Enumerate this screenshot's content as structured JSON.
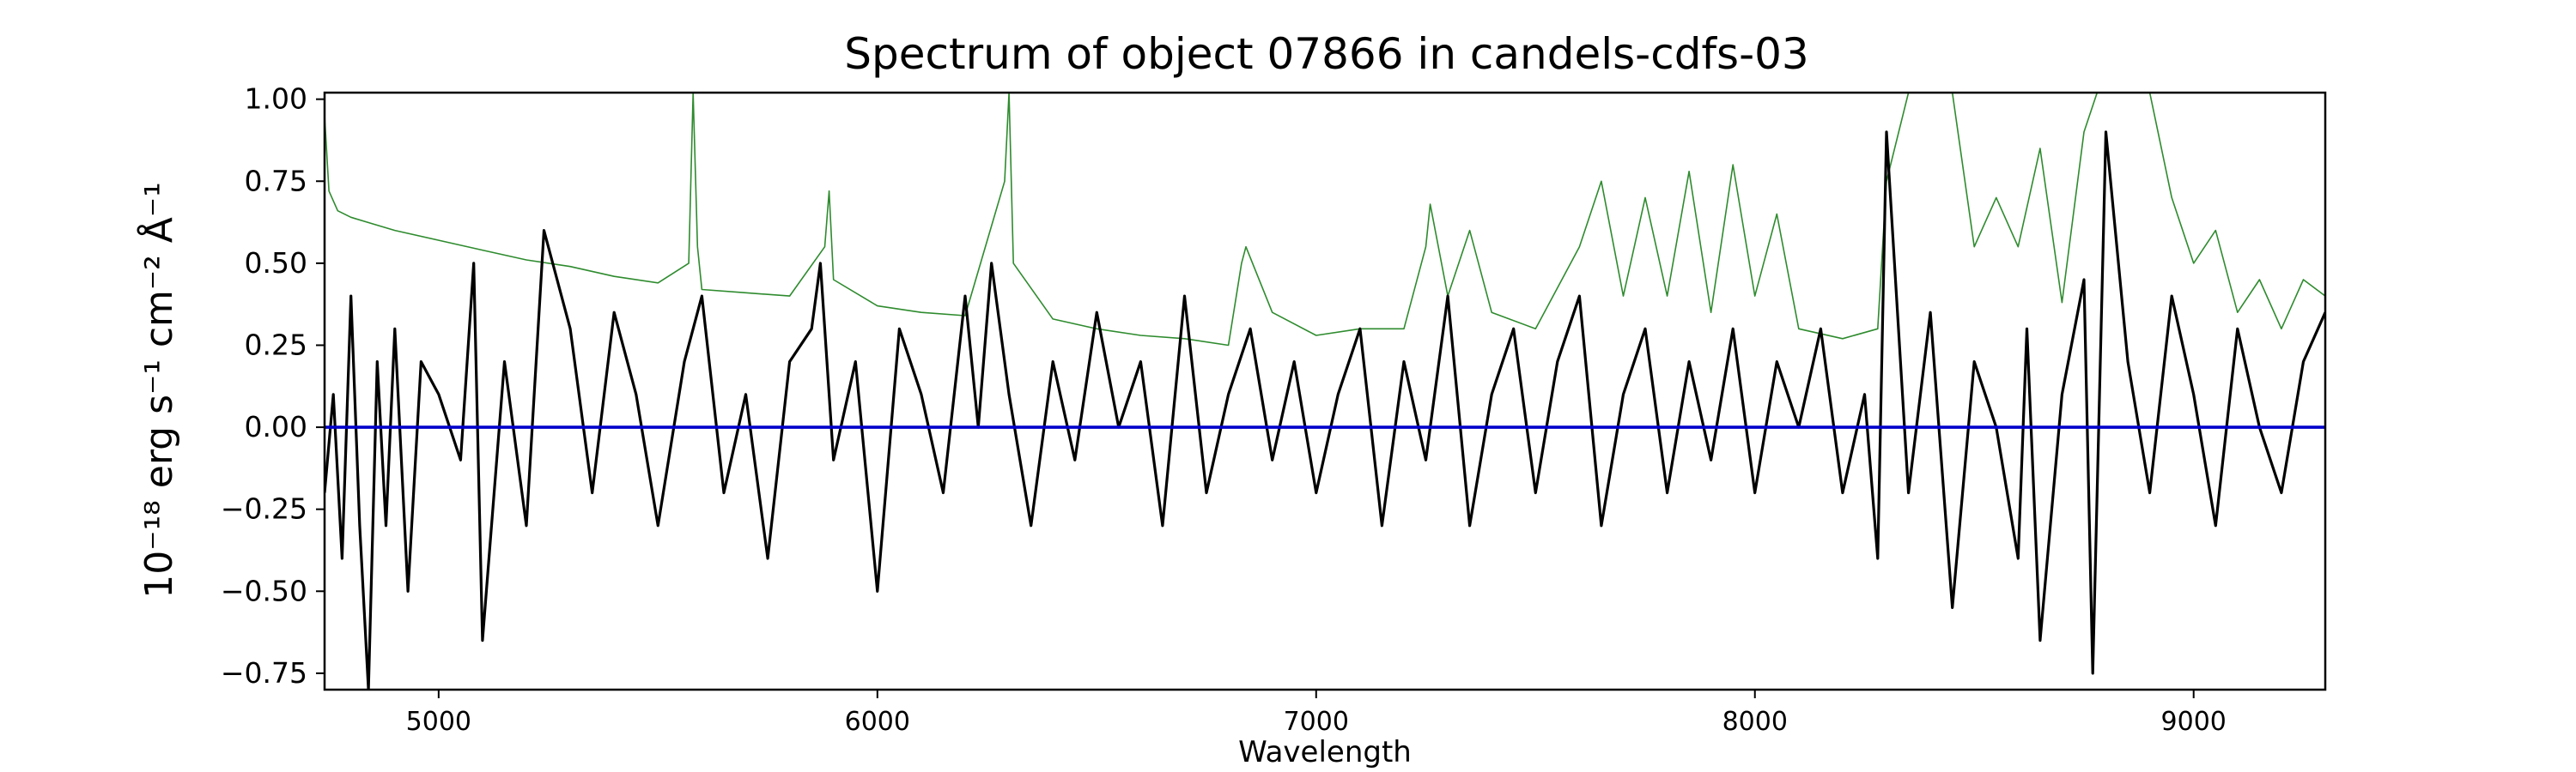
{
  "chart_data": {
    "type": "line",
    "title": "Spectrum of object 07866 in candels-cdfs-03",
    "xlabel": "Wavelength",
    "ylabel": "10⁻¹⁸ erg s⁻¹ cm⁻² Å⁻¹",
    "xlim": [
      4740,
      9300
    ],
    "ylim": [
      -0.8,
      1.02
    ],
    "xticks": [
      5000,
      6000,
      7000,
      8000,
      9000
    ],
    "yticks": [
      -0.75,
      -0.5,
      -0.25,
      0.0,
      0.25,
      0.5,
      0.75,
      1.0
    ],
    "xtick_labels": [
      "5000",
      "6000",
      "7000",
      "8000",
      "9000"
    ],
    "ytick_labels": [
      "−0.75",
      "−0.50",
      "−0.25",
      "0.00",
      "0.25",
      "0.50",
      "0.75",
      "1.00"
    ],
    "grid": false,
    "colors": {
      "flux": "#000000",
      "error": "#2e8b2e",
      "zero": "#0000cc"
    },
    "series": [
      {
        "key": "error",
        "x": [
          4740,
          4750,
          4770,
          4800,
          4850,
          4900,
          5000,
          5100,
          5200,
          5300,
          5400,
          5500,
          5570,
          5580,
          5590,
          5600,
          5700,
          5800,
          5880,
          5890,
          5900,
          6000,
          6100,
          6200,
          6290,
          6300,
          6310,
          6400,
          6500,
          6600,
          6700,
          6800,
          6830,
          6840,
          6900,
          7000,
          7100,
          7200,
          7250,
          7260,
          7300,
          7350,
          7400,
          7500,
          7600,
          7650,
          7700,
          7750,
          7800,
          7850,
          7900,
          7950,
          8000,
          8050,
          8100,
          8200,
          8280,
          8300,
          8350,
          8400,
          8450,
          8500,
          8550,
          8600,
          8650,
          8700,
          8750,
          8780,
          8800,
          8850,
          8900,
          8950,
          9000,
          9050,
          9100,
          9150,
          9200,
          9250,
          9300
        ],
        "y": [
          0.95,
          0.72,
          0.66,
          0.64,
          0.62,
          0.6,
          0.57,
          0.54,
          0.51,
          0.49,
          0.46,
          0.44,
          0.5,
          1.02,
          0.55,
          0.42,
          0.41,
          0.4,
          0.55,
          0.72,
          0.45,
          0.37,
          0.35,
          0.34,
          0.75,
          1.02,
          0.5,
          0.33,
          0.3,
          0.28,
          0.27,
          0.25,
          0.5,
          0.55,
          0.35,
          0.28,
          0.3,
          0.3,
          0.55,
          0.68,
          0.4,
          0.6,
          0.35,
          0.3,
          0.55,
          0.75,
          0.4,
          0.7,
          0.4,
          0.78,
          0.35,
          0.8,
          0.4,
          0.65,
          0.3,
          0.27,
          0.3,
          0.75,
          1.02,
          1.02,
          1.02,
          0.55,
          0.7,
          0.55,
          0.85,
          0.38,
          0.9,
          1.02,
          1.02,
          1.02,
          1.02,
          0.7,
          0.5,
          0.6,
          0.35,
          0.45,
          0.3,
          0.45,
          0.4
        ]
      },
      {
        "key": "flux",
        "x": [
          4740,
          4760,
          4780,
          4800,
          4820,
          4840,
          4860,
          4880,
          4900,
          4930,
          4960,
          5000,
          5050,
          5080,
          5100,
          5150,
          5200,
          5240,
          5300,
          5350,
          5400,
          5450,
          5500,
          5560,
          5600,
          5650,
          5700,
          5750,
          5800,
          5850,
          5870,
          5900,
          5950,
          6000,
          6050,
          6100,
          6150,
          6200,
          6230,
          6260,
          6300,
          6350,
          6400,
          6450,
          6500,
          6550,
          6600,
          6650,
          6700,
          6750,
          6800,
          6850,
          6900,
          6950,
          7000,
          7050,
          7100,
          7150,
          7200,
          7250,
          7300,
          7350,
          7400,
          7450,
          7500,
          7550,
          7600,
          7650,
          7700,
          7750,
          7800,
          7850,
          7900,
          7950,
          8000,
          8050,
          8100,
          8150,
          8200,
          8250,
          8280,
          8300,
          8350,
          8400,
          8450,
          8500,
          8550,
          8600,
          8620,
          8650,
          8700,
          8750,
          8770,
          8800,
          8850,
          8900,
          8950,
          9000,
          9050,
          9100,
          9150,
          9200,
          9250,
          9300
        ],
        "y": [
          -0.2,
          0.1,
          -0.4,
          0.4,
          -0.3,
          -0.8,
          0.2,
          -0.3,
          0.3,
          -0.5,
          0.2,
          0.1,
          -0.1,
          0.5,
          -0.65,
          0.2,
          -0.3,
          0.6,
          0.3,
          -0.2,
          0.35,
          0.1,
          -0.3,
          0.2,
          0.4,
          -0.2,
          0.1,
          -0.4,
          0.2,
          0.3,
          0.5,
          -0.1,
          0.2,
          -0.5,
          0.3,
          0.1,
          -0.2,
          0.4,
          0.0,
          0.5,
          0.1,
          -0.3,
          0.2,
          -0.1,
          0.35,
          0.0,
          0.2,
          -0.3,
          0.4,
          -0.2,
          0.1,
          0.3,
          -0.1,
          0.2,
          -0.2,
          0.1,
          0.3,
          -0.3,
          0.2,
          -0.1,
          0.4,
          -0.3,
          0.1,
          0.3,
          -0.2,
          0.2,
          0.4,
          -0.3,
          0.1,
          0.3,
          -0.2,
          0.2,
          -0.1,
          0.3,
          -0.2,
          0.2,
          0.0,
          0.3,
          -0.2,
          0.1,
          -0.4,
          0.9,
          -0.2,
          0.35,
          -0.55,
          0.2,
          0.0,
          -0.4,
          0.3,
          -0.65,
          0.1,
          0.45,
          -0.75,
          0.9,
          0.2,
          -0.2,
          0.4,
          0.1,
          -0.3,
          0.3,
          0.0,
          -0.2,
          0.2,
          0.35
        ]
      },
      {
        "key": "zero",
        "x": [
          4740,
          9300
        ],
        "y": [
          0.0,
          0.0
        ]
      }
    ]
  }
}
